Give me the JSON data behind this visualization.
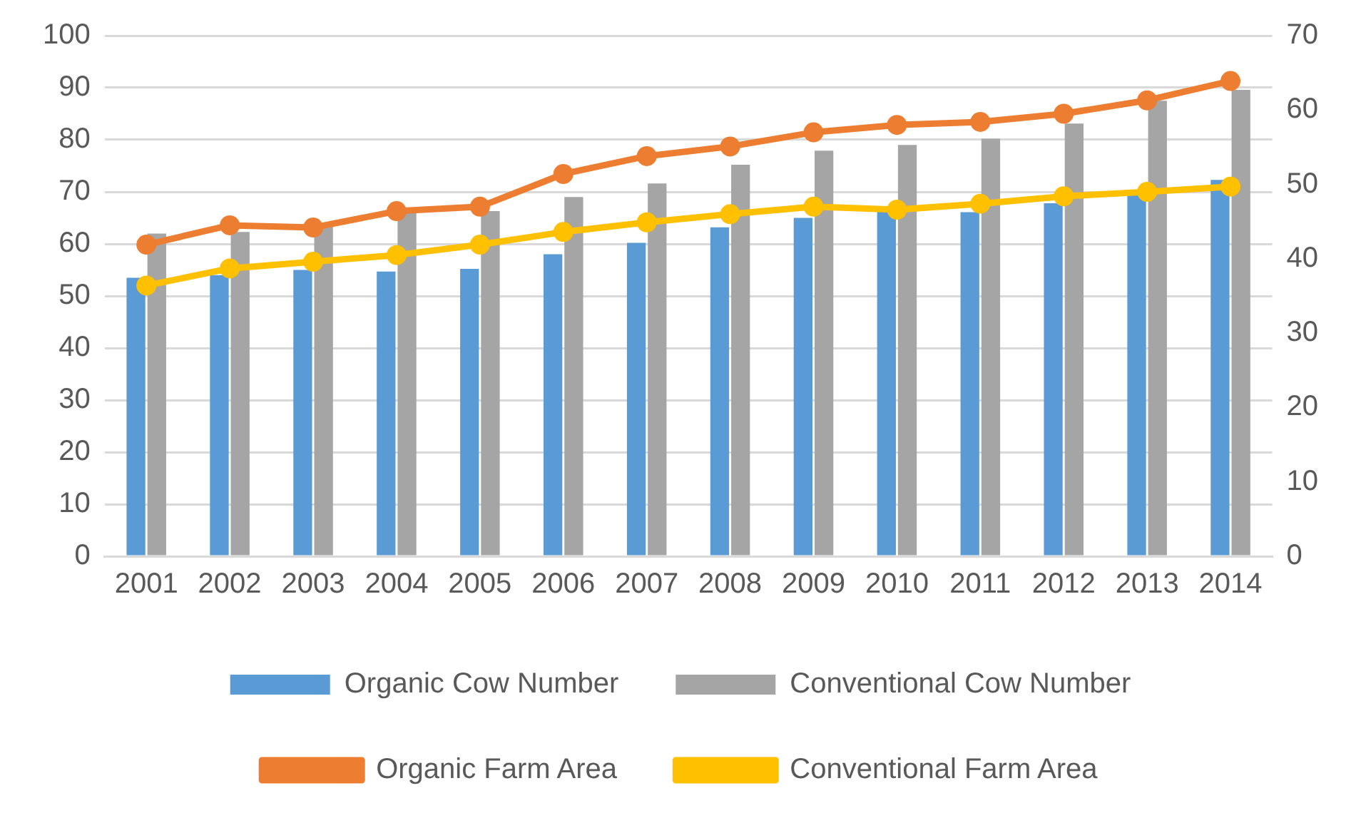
{
  "chart_data": {
    "type": "bar",
    "categories": [
      "2001",
      "2002",
      "2003",
      "2004",
      "2005",
      "2006",
      "2007",
      "2008",
      "2009",
      "2010",
      "2011",
      "2012",
      "2013",
      "2014"
    ],
    "series": [
      {
        "name": "Organic Cow Number",
        "color": "#5b9bd5",
        "values": [
          53.5,
          54,
          55,
          54.7,
          55.2,
          58,
          60.2,
          63.2,
          65,
          66.3,
          66.1,
          67.8,
          69.6,
          72.3
        ]
      },
      {
        "name": "Conventional Cow Number",
        "color": "#a5a5a5",
        "values": [
          62,
          62.3,
          63.5,
          66,
          66.3,
          69,
          71.6,
          75.2,
          77.9,
          79,
          80.2,
          83.1,
          87.5,
          89.6
        ]
      },
      {
        "name": "Organic Farm Area",
        "type": "line",
        "axis": "y2",
        "color": "#ed7d31",
        "values": [
          41.9,
          44.5,
          44.2,
          46.4,
          47,
          51.4,
          53.8,
          55.1,
          57,
          58,
          58.4,
          59.5,
          61.3,
          63.9
        ]
      },
      {
        "name": "Conventional Farm Area",
        "type": "line",
        "axis": "y2",
        "color": "#ffc000",
        "values": [
          36.4,
          38.7,
          39.6,
          40.5,
          41.9,
          43.6,
          44.9,
          46,
          47,
          46.6,
          47.4,
          48.4,
          49,
          49.7
        ]
      }
    ],
    "ylim": [
      0,
      100
    ],
    "yticks": [
      0,
      10,
      20,
      30,
      40,
      50,
      60,
      70,
      80,
      90,
      100
    ],
    "y2lim": [
      0,
      70
    ],
    "y2ticks": [
      0,
      10,
      20,
      30,
      40,
      50,
      60,
      70
    ],
    "grid": "y",
    "legend": "bottom",
    "marker": "circle",
    "line_style": "solid"
  }
}
